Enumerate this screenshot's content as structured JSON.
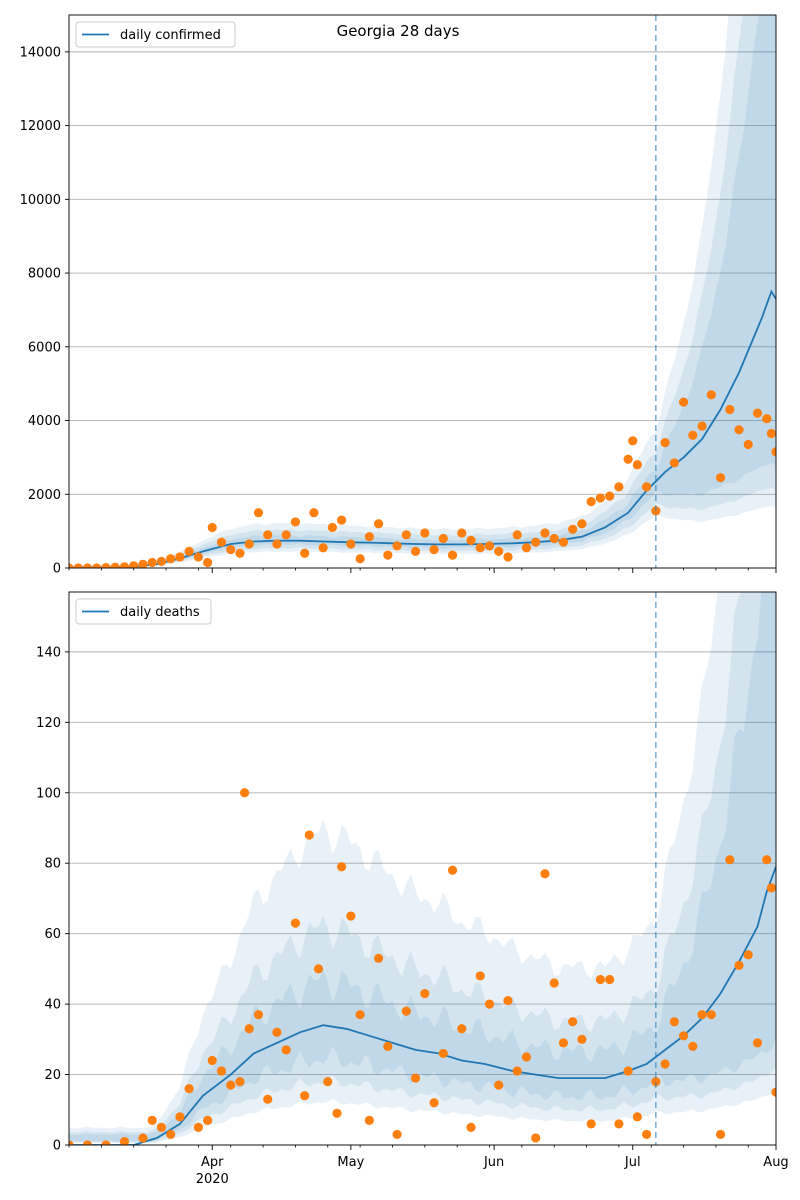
{
  "figure": {
    "title": "Georgia 28 days",
    "x_ticks_major": [
      "Apr\n2020",
      "May",
      "Jun",
      "Jul",
      "Aug"
    ],
    "forecast_start": "2020-07-06"
  },
  "colors": {
    "line": "#1f77b4",
    "observed": "#ff7f0e",
    "band": "#1f77b4",
    "grid": "#b0b0b0",
    "vline": "#1f77b4"
  },
  "chart_data": [
    {
      "type": "line",
      "title": "Georgia 28 days",
      "legend": {
        "label": "daily confirmed",
        "placement": "top-left"
      },
      "x_start": "2020-03-01",
      "x_end": "2020-08-01",
      "xticks": [
        "Apr 2020",
        "May",
        "Jun",
        "Jul",
        "Aug"
      ],
      "ylim": [
        0,
        15000
      ],
      "yticks": [
        0,
        2000,
        4000,
        6000,
        8000,
        10000,
        12000,
        14000
      ],
      "grid": "y",
      "forecast_start": "2020-07-06",
      "series": [
        {
          "name": "daily confirmed",
          "kind": "median",
          "points": [
            [
              "2020-03-01",
              0
            ],
            [
              "2020-03-10",
              10
            ],
            [
              "2020-03-15",
              30
            ],
            [
              "2020-03-20",
              100
            ],
            [
              "2020-03-25",
              260
            ],
            [
              "2020-03-30",
              450
            ],
            [
              "2020-04-05",
              650
            ],
            [
              "2020-04-10",
              720
            ],
            [
              "2020-04-15",
              740
            ],
            [
              "2020-04-20",
              740
            ],
            [
              "2020-04-25",
              720
            ],
            [
              "2020-04-30",
              700
            ],
            [
              "2020-05-05",
              690
            ],
            [
              "2020-05-10",
              670
            ],
            [
              "2020-05-15",
              650
            ],
            [
              "2020-05-20",
              640
            ],
            [
              "2020-05-25",
              640
            ],
            [
              "2020-05-30",
              650
            ],
            [
              "2020-06-05",
              670
            ],
            [
              "2020-06-10",
              700
            ],
            [
              "2020-06-15",
              750
            ],
            [
              "2020-06-20",
              850
            ],
            [
              "2020-06-25",
              1100
            ],
            [
              "2020-06-30",
              1500
            ],
            [
              "2020-07-04",
              2100
            ],
            [
              "2020-07-08",
              2600
            ],
            [
              "2020-07-12",
              3000
            ],
            [
              "2020-07-16",
              3500
            ],
            [
              "2020-07-20",
              4300
            ],
            [
              "2020-07-24",
              5300
            ],
            [
              "2020-07-27",
              6200
            ],
            [
              "2020-07-29",
              6800
            ],
            [
              "2020-07-31",
              7500
            ],
            [
              "2020-08-01",
              7300
            ]
          ]
        },
        {
          "name": "",
          "kind": "observed",
          "points": [
            [
              "2020-03-01",
              0
            ],
            [
              "2020-03-03",
              0
            ],
            [
              "2020-03-05",
              0
            ],
            [
              "2020-03-07",
              0
            ],
            [
              "2020-03-09",
              10
            ],
            [
              "2020-03-11",
              20
            ],
            [
              "2020-03-13",
              30
            ],
            [
              "2020-03-15",
              60
            ],
            [
              "2020-03-17",
              100
            ],
            [
              "2020-03-19",
              150
            ],
            [
              "2020-03-21",
              180
            ],
            [
              "2020-03-23",
              250
            ],
            [
              "2020-03-25",
              300
            ],
            [
              "2020-03-27",
              450
            ],
            [
              "2020-03-29",
              300
            ],
            [
              "2020-03-31",
              150
            ],
            [
              "2020-04-01",
              1100
            ],
            [
              "2020-04-03",
              700
            ],
            [
              "2020-04-05",
              500
            ],
            [
              "2020-04-07",
              400
            ],
            [
              "2020-04-09",
              650
            ],
            [
              "2020-04-11",
              1500
            ],
            [
              "2020-04-13",
              900
            ],
            [
              "2020-04-15",
              650
            ],
            [
              "2020-04-17",
              900
            ],
            [
              "2020-04-19",
              1250
            ],
            [
              "2020-04-21",
              400
            ],
            [
              "2020-04-23",
              1500
            ],
            [
              "2020-04-25",
              550
            ],
            [
              "2020-04-27",
              1100
            ],
            [
              "2020-04-29",
              1300
            ],
            [
              "2020-05-01",
              650
            ],
            [
              "2020-05-03",
              250
            ],
            [
              "2020-05-05",
              850
            ],
            [
              "2020-05-07",
              1200
            ],
            [
              "2020-05-09",
              350
            ],
            [
              "2020-05-11",
              600
            ],
            [
              "2020-05-13",
              900
            ],
            [
              "2020-05-15",
              450
            ],
            [
              "2020-05-17",
              950
            ],
            [
              "2020-05-19",
              500
            ],
            [
              "2020-05-21",
              800
            ],
            [
              "2020-05-23",
              350
            ],
            [
              "2020-05-25",
              950
            ],
            [
              "2020-05-27",
              750
            ],
            [
              "2020-05-29",
              550
            ],
            [
              "2020-05-31",
              600
            ],
            [
              "2020-06-02",
              450
            ],
            [
              "2020-06-04",
              300
            ],
            [
              "2020-06-06",
              900
            ],
            [
              "2020-06-08",
              550
            ],
            [
              "2020-06-10",
              700
            ],
            [
              "2020-06-12",
              950
            ],
            [
              "2020-06-14",
              800
            ],
            [
              "2020-06-16",
              700
            ],
            [
              "2020-06-18",
              1050
            ],
            [
              "2020-06-20",
              1200
            ],
            [
              "2020-06-22",
              1800
            ],
            [
              "2020-06-24",
              1900
            ],
            [
              "2020-06-26",
              1950
            ],
            [
              "2020-06-28",
              2200
            ],
            [
              "2020-06-30",
              2950
            ],
            [
              "2020-07-01",
              3450
            ],
            [
              "2020-07-02",
              2800
            ],
            [
              "2020-07-04",
              2200
            ],
            [
              "2020-07-06",
              1550
            ],
            [
              "2020-07-08",
              3400
            ],
            [
              "2020-07-10",
              2850
            ],
            [
              "2020-07-12",
              4500
            ],
            [
              "2020-07-14",
              3600
            ],
            [
              "2020-07-16",
              3850
            ],
            [
              "2020-07-18",
              4700
            ],
            [
              "2020-07-20",
              2450
            ],
            [
              "2020-07-22",
              4300
            ],
            [
              "2020-07-24",
              3750
            ],
            [
              "2020-07-26",
              3350
            ],
            [
              "2020-07-28",
              4200
            ],
            [
              "2020-07-30",
              4050
            ],
            [
              "2020-07-31",
              3650
            ],
            [
              "2020-08-01",
              3150
            ]
          ]
        }
      ]
    },
    {
      "type": "line",
      "legend": {
        "label": "daily deaths",
        "placement": "top-left"
      },
      "x_start": "2020-03-01",
      "x_end": "2020-08-01",
      "xticks": [
        "Apr 2020",
        "May",
        "Jun",
        "Jul",
        "Aug"
      ],
      "ylim": [
        0,
        157
      ],
      "yticks": [
        0,
        20,
        40,
        60,
        80,
        100,
        120,
        140
      ],
      "grid": "y",
      "forecast_start": "2020-07-06",
      "series": [
        {
          "name": "daily deaths",
          "kind": "median",
          "points": [
            [
              "2020-03-01",
              0
            ],
            [
              "2020-03-15",
              0
            ],
            [
              "2020-03-20",
              2
            ],
            [
              "2020-03-25",
              6
            ],
            [
              "2020-03-30",
              14
            ],
            [
              "2020-04-05",
              20
            ],
            [
              "2020-04-10",
              26
            ],
            [
              "2020-04-15",
              29
            ],
            [
              "2020-04-20",
              32
            ],
            [
              "2020-04-25",
              34
            ],
            [
              "2020-04-30",
              33
            ],
            [
              "2020-05-05",
              31
            ],
            [
              "2020-05-10",
              29
            ],
            [
              "2020-05-15",
              27
            ],
            [
              "2020-05-20",
              26
            ],
            [
              "2020-05-25",
              24
            ],
            [
              "2020-05-30",
              23
            ],
            [
              "2020-06-05",
              21
            ],
            [
              "2020-06-10",
              20
            ],
            [
              "2020-06-15",
              19
            ],
            [
              "2020-06-20",
              19
            ],
            [
              "2020-06-25",
              19
            ],
            [
              "2020-06-30",
              21
            ],
            [
              "2020-07-04",
              23
            ],
            [
              "2020-07-08",
              27
            ],
            [
              "2020-07-12",
              31
            ],
            [
              "2020-07-16",
              36
            ],
            [
              "2020-07-20",
              43
            ],
            [
              "2020-07-24",
              52
            ],
            [
              "2020-07-28",
              62
            ],
            [
              "2020-07-30",
              72
            ],
            [
              "2020-08-01",
              79
            ]
          ]
        },
        {
          "name": "",
          "kind": "observed",
          "points": [
            [
              "2020-03-01",
              0
            ],
            [
              "2020-03-05",
              0
            ],
            [
              "2020-03-09",
              0
            ],
            [
              "2020-03-13",
              1
            ],
            [
              "2020-03-17",
              2
            ],
            [
              "2020-03-19",
              7
            ],
            [
              "2020-03-21",
              5
            ],
            [
              "2020-03-23",
              3
            ],
            [
              "2020-03-25",
              8
            ],
            [
              "2020-03-27",
              16
            ],
            [
              "2020-03-29",
              5
            ],
            [
              "2020-03-31",
              7
            ],
            [
              "2020-04-01",
              24
            ],
            [
              "2020-04-03",
              21
            ],
            [
              "2020-04-05",
              17
            ],
            [
              "2020-04-07",
              18
            ],
            [
              "2020-04-08",
              100
            ],
            [
              "2020-04-09",
              33
            ],
            [
              "2020-04-11",
              37
            ],
            [
              "2020-04-13",
              13
            ],
            [
              "2020-04-15",
              32
            ],
            [
              "2020-04-17",
              27
            ],
            [
              "2020-04-19",
              63
            ],
            [
              "2020-04-21",
              14
            ],
            [
              "2020-04-22",
              88
            ],
            [
              "2020-04-24",
              50
            ],
            [
              "2020-04-26",
              18
            ],
            [
              "2020-04-28",
              9
            ],
            [
              "2020-04-29",
              79
            ],
            [
              "2020-05-01",
              65
            ],
            [
              "2020-05-03",
              37
            ],
            [
              "2020-05-05",
              7
            ],
            [
              "2020-05-07",
              53
            ],
            [
              "2020-05-09",
              28
            ],
            [
              "2020-05-11",
              3
            ],
            [
              "2020-05-13",
              38
            ],
            [
              "2020-05-15",
              19
            ],
            [
              "2020-05-17",
              43
            ],
            [
              "2020-05-19",
              12
            ],
            [
              "2020-05-21",
              26
            ],
            [
              "2020-05-23",
              78
            ],
            [
              "2020-05-25",
              33
            ],
            [
              "2020-05-27",
              5
            ],
            [
              "2020-05-29",
              48
            ],
            [
              "2020-05-31",
              40
            ],
            [
              "2020-06-02",
              17
            ],
            [
              "2020-06-04",
              41
            ],
            [
              "2020-06-06",
              21
            ],
            [
              "2020-06-08",
              25
            ],
            [
              "2020-06-10",
              2
            ],
            [
              "2020-06-12",
              77
            ],
            [
              "2020-06-14",
              46
            ],
            [
              "2020-06-16",
              29
            ],
            [
              "2020-06-18",
              35
            ],
            [
              "2020-06-20",
              30
            ],
            [
              "2020-06-22",
              6
            ],
            [
              "2020-06-24",
              47
            ],
            [
              "2020-06-26",
              47
            ],
            [
              "2020-06-28",
              6
            ],
            [
              "2020-06-30",
              21
            ],
            [
              "2020-07-02",
              8
            ],
            [
              "2020-07-04",
              3
            ],
            [
              "2020-07-06",
              18
            ],
            [
              "2020-07-08",
              23
            ],
            [
              "2020-07-10",
              35
            ],
            [
              "2020-07-12",
              31
            ],
            [
              "2020-07-14",
              28
            ],
            [
              "2020-07-16",
              37
            ],
            [
              "2020-07-18",
              37
            ],
            [
              "2020-07-20",
              3
            ],
            [
              "2020-07-22",
              81
            ],
            [
              "2020-07-24",
              51
            ],
            [
              "2020-07-26",
              54
            ],
            [
              "2020-07-28",
              29
            ],
            [
              "2020-07-30",
              81
            ],
            [
              "2020-07-31",
              73
            ],
            [
              "2020-08-01",
              15
            ]
          ]
        }
      ]
    }
  ]
}
